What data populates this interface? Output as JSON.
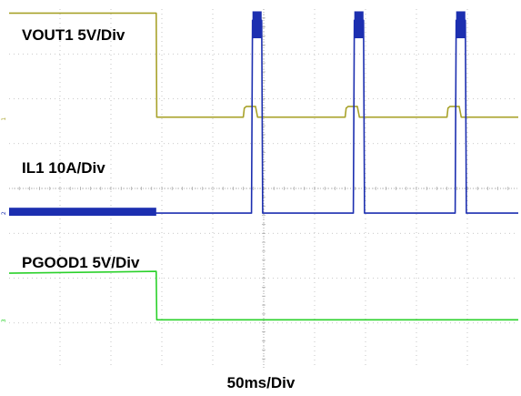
{
  "chart_data": {
    "type": "line",
    "instrument": "oscilloscope",
    "xlabel": "50ms/Div",
    "grid": true,
    "grid_divisions": {
      "x": 10,
      "y": 8
    },
    "x_unit": "ms",
    "x_per_div": 50,
    "x_range": [
      0,
      500
    ],
    "series": [
      {
        "name": "VOUT1 5V/Div",
        "channel": "1",
        "color": "#a8a22a",
        "unit": "V",
        "volts_per_div": 5,
        "ground_div": 5.55,
        "x": [
          0,
          144.5,
          145,
          230,
          231,
          233,
          242,
          244,
          330,
          331,
          333,
          342,
          344,
          430,
          431,
          433,
          442,
          444,
          500
        ],
        "y": [
          11.8,
          11.8,
          0.2,
          0.2,
          1.2,
          1.4,
          1.4,
          0.2,
          0.2,
          1.2,
          1.4,
          1.4,
          0.2,
          0.2,
          1.2,
          1.4,
          1.4,
          0.2,
          0.2
        ]
      },
      {
        "name": "IL1 10A/Div",
        "channel": "2",
        "color": "#1c2fb0",
        "unit": "A",
        "amps_per_div": 10,
        "ground_div": 3.45,
        "x": [
          0,
          144.5,
          145,
          238,
          239,
          248,
          249,
          338,
          339,
          348,
          349,
          438,
          439,
          448,
          449,
          500
        ],
        "y": [
          0,
          0,
          0,
          0,
          43,
          43,
          0,
          0,
          43,
          43,
          0,
          0,
          43,
          43,
          0,
          0
        ],
        "band": {
          "x": [
            0,
            144.5
          ],
          "y": [
            -0.6,
            1.2
          ]
        },
        "pulse_band_x": [
          [
            239,
            248
          ],
          [
            339,
            348
          ],
          [
            439,
            448
          ]
        ],
        "pulse_band_y": [
          39,
          45
        ]
      },
      {
        "name": "PGOOD1 5V/Div",
        "channel": "3",
        "color": "#2ad12a",
        "unit": "V",
        "volts_per_div": 5,
        "ground_div": 1.05,
        "x": [
          0,
          144.5,
          145,
          500
        ],
        "y": [
          5.3,
          5.5,
          0.1,
          0.1
        ]
      }
    ]
  }
}
